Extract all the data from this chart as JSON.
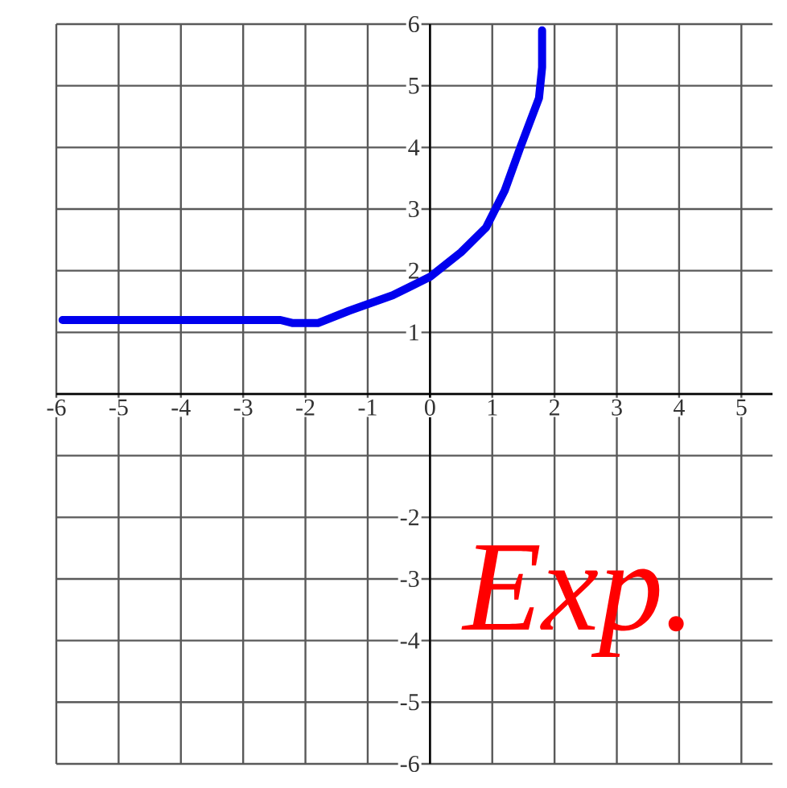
{
  "chart_data": {
    "type": "line",
    "xlim": [
      -6,
      5.5
    ],
    "ylim": [
      -6,
      6
    ],
    "xticks": [
      -6,
      -5,
      -4,
      -3,
      -2,
      -1,
      0,
      1,
      2,
      3,
      4,
      5
    ],
    "yticks": [
      -6,
      -5,
      -4,
      -3,
      -2,
      {
        "value": -1,
        "label": null
      },
      {
        "value": 0,
        "label": null
      },
      1,
      2,
      3,
      4,
      5,
      6
    ],
    "grid": true,
    "marker": "none",
    "line_style": "solid",
    "series": [
      {
        "color": "#0000ee",
        "x": [
          -5.9,
          -5,
          -4,
          -3,
          -2.4,
          -2.2,
          -1.8,
          -1.3,
          -0.6,
          0,
          0.5,
          0.9,
          1.2,
          1.45,
          1.75,
          1.8,
          1.8
        ],
        "values": [
          1.2,
          1.2,
          1.2,
          1.2,
          1.2,
          1.15,
          1.15,
          1.35,
          1.6,
          1.9,
          2.3,
          2.7,
          3.3,
          4.0,
          4.8,
          5.3,
          5.9
        ]
      }
    ],
    "annotations": [
      "Exp."
    ]
  }
}
